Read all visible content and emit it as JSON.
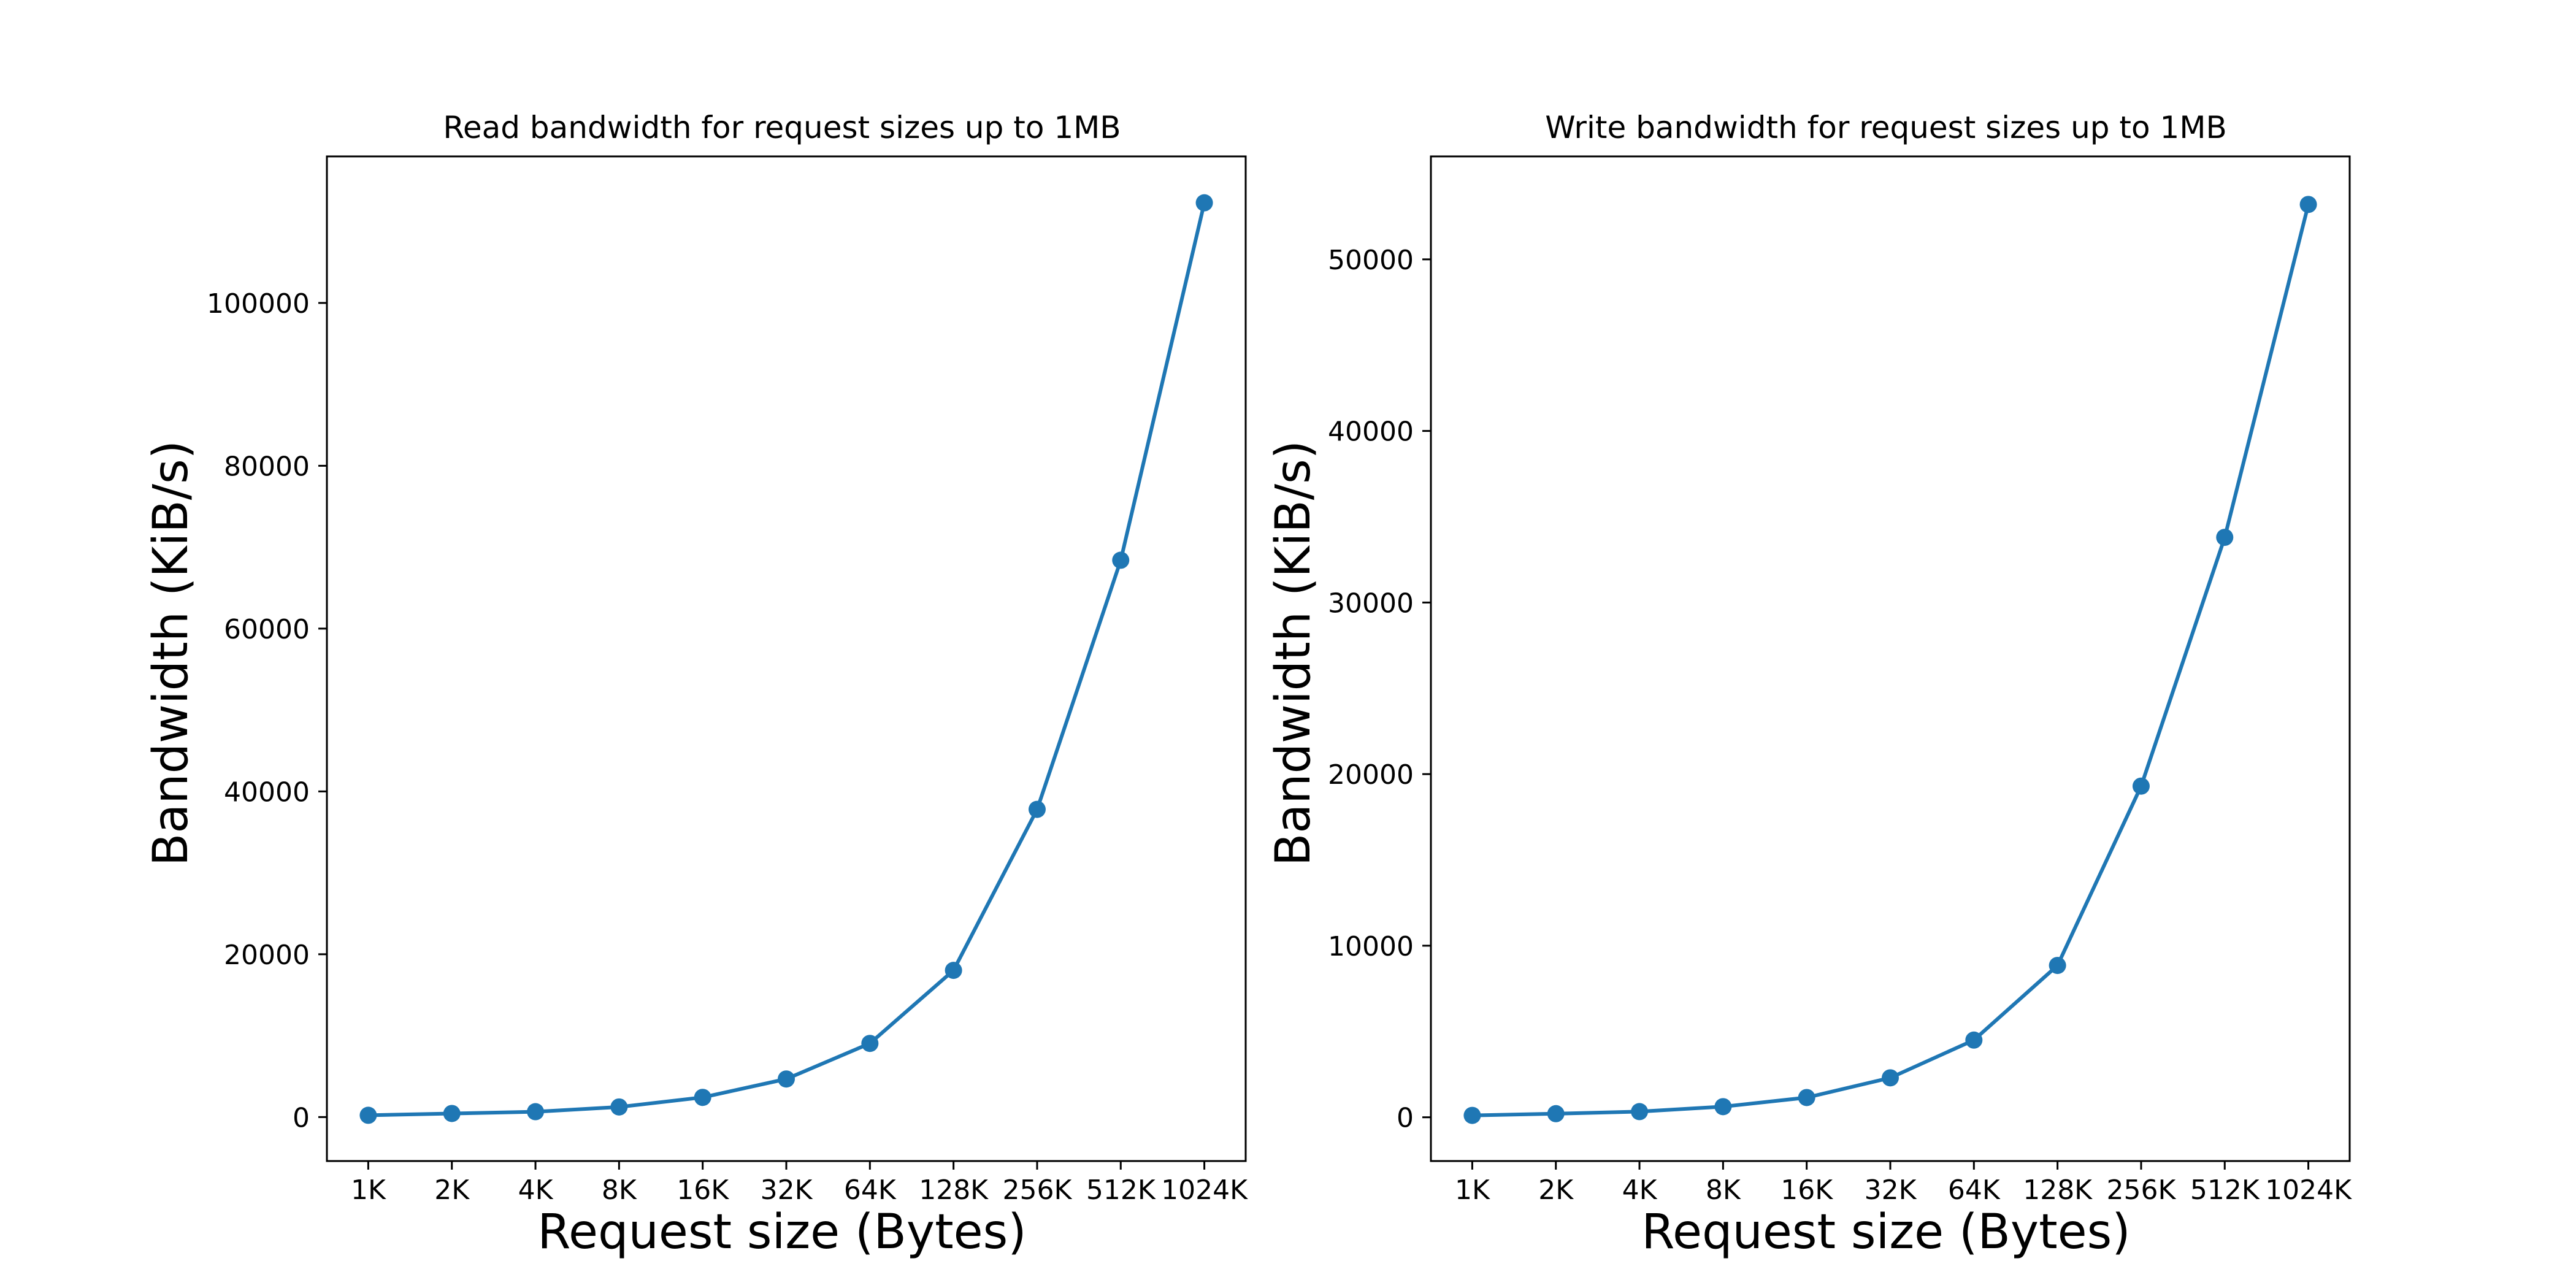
{
  "chart_data": [
    {
      "type": "line",
      "title": "Read bandwidth for request sizes up to 1MB",
      "xlabel": "Request size (Bytes)",
      "ylabel": "Bandwidth (KiB/s)",
      "categories": [
        "1K",
        "2K",
        "4K",
        "8K",
        "16K",
        "32K",
        "64K",
        "128K",
        "256K",
        "512K",
        "1024K"
      ],
      "series": [
        {
          "values": [
            220,
            440,
            660,
            1240,
            2420,
            4680,
            9050,
            18020,
            37800,
            68400,
            112300
          ]
        }
      ],
      "yticks": [
        0,
        20000,
        40000,
        60000,
        80000,
        100000
      ],
      "ylim": [
        -5400,
        118000
      ],
      "grid": false,
      "marker": "circle",
      "color": "#1f77b4"
    },
    {
      "type": "line",
      "title": "Write bandwidth for request sizes up to 1MB",
      "xlabel": "Request size (Bytes)",
      "ylabel": "Bandwidth (KiB/s)",
      "categories": [
        "1K",
        "2K",
        "4K",
        "8K",
        "16K",
        "32K",
        "64K",
        "128K",
        "256K",
        "512K",
        "1024K"
      ],
      "series": [
        {
          "values": [
            110,
            210,
            330,
            620,
            1150,
            2300,
            4500,
            8850,
            19300,
            33800,
            53200
          ]
        }
      ],
      "yticks": [
        0,
        10000,
        20000,
        30000,
        40000,
        50000
      ],
      "ylim": [
        -2550,
        56000
      ],
      "grid": false,
      "marker": "circle",
      "color": "#1f77b4"
    }
  ]
}
